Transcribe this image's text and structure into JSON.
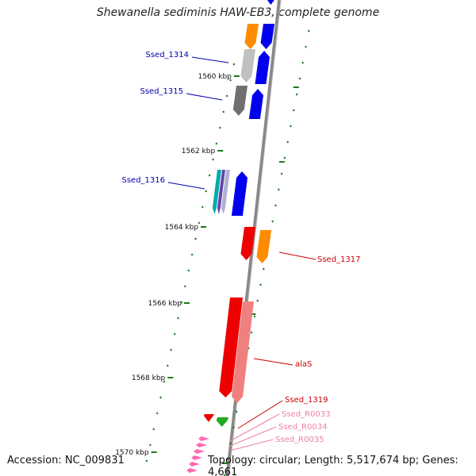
{
  "header": {
    "title": "Shewanella sediminis HAW-EB3, complete genome"
  },
  "footer": {
    "accession": "Accession: NC_009831",
    "topology": "Topology: circular; Length: 5,517,674 bp; Genes: 4,661"
  },
  "colors": {
    "backbone": "#888888",
    "blue": "#0000ee",
    "orange": "#ff8c00",
    "red": "#ee0000",
    "salmon": "#f08080",
    "green": "#22aa22",
    "pink": "#ff69b4",
    "tick": "#1a7a1a",
    "label_blue": "#0000aa",
    "label_red": "#cc0000",
    "label_pink": "#f080a0"
  },
  "ticks": [
    {
      "label": "1560 kbp"
    },
    {
      "label": "1562 kbp"
    },
    {
      "label": "1564 kbp"
    },
    {
      "label": "1566 kbp"
    },
    {
      "label": "1568 kbp"
    },
    {
      "label": "1570 kbp"
    }
  ],
  "gene_labels": [
    {
      "text": "Ssed_1314",
      "group": "blue"
    },
    {
      "text": "Ssed_1315",
      "group": "blue"
    },
    {
      "text": "Ssed_1316",
      "group": "blue"
    },
    {
      "text": "Ssed_1317",
      "group": "red"
    },
    {
      "text": "alaS",
      "group": "red"
    },
    {
      "text": "Ssed_1319",
      "group": "red"
    },
    {
      "text": "Ssed_R0033",
      "group": "pink"
    },
    {
      "text": "Ssed_R0034",
      "group": "pink"
    },
    {
      "text": "Ssed_R0035",
      "group": "pink"
    }
  ]
}
